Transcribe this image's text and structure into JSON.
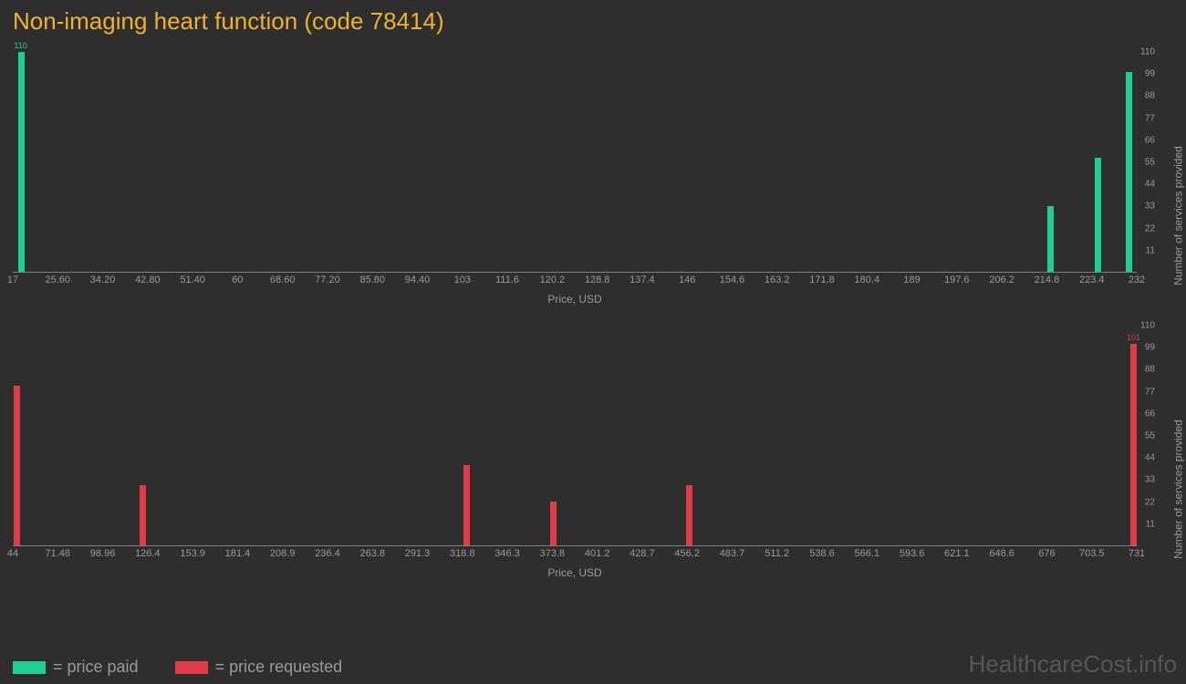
{
  "title": "Non-imaging heart function (code 78414)",
  "background_color": "#2e2e2e",
  "title_color": "#efb32a",
  "tick_color": "#9a9a9a",
  "axis_line_color": "#808080",
  "watermark": "HealthcareCost.info",
  "watermark_color": "#565656",
  "chart_top": {
    "type": "bar",
    "color": "#1ecf92",
    "xlabel": "Price, USD",
    "ylabel": "Number of services provided",
    "xmin": 17,
    "xmax": 232,
    "xticks": [
      "17",
      "25.60",
      "34.20",
      "42.80",
      "51.40",
      "60",
      "68.60",
      "77.20",
      "85.80",
      "94.40",
      "103",
      "111.6",
      "120.2",
      "128.8",
      "137.4",
      "146",
      "154.6",
      "163.2",
      "171.8",
      "180.4",
      "189",
      "197.6",
      "206.2",
      "214.8",
      "223.4",
      "232"
    ],
    "ymin": 0,
    "ymax": 110,
    "yticks": [
      11,
      22,
      33,
      44,
      55,
      66,
      77,
      88,
      99,
      110
    ],
    "bars": [
      {
        "x": 18.5,
        "y": 110,
        "label": "110"
      },
      {
        "x": 215.5,
        "y": 33
      },
      {
        "x": 224.5,
        "y": 57
      },
      {
        "x": 230.5,
        "y": 100
      }
    ]
  },
  "chart_bottom": {
    "type": "bar",
    "color": "#e03b46",
    "xlabel": "Price, USD",
    "ylabel": "Number of services provided",
    "xmin": 44,
    "xmax": 731,
    "xticks": [
      "44",
      "71.48",
      "98.96",
      "126.4",
      "153.9",
      "181.4",
      "208.9",
      "236.4",
      "263.8",
      "291.3",
      "318.8",
      "346.3",
      "373.8",
      "401.2",
      "428.7",
      "456.2",
      "483.7",
      "511.2",
      "538.6",
      "566.1",
      "593.6",
      "621.1",
      "648.6",
      "676",
      "703.5",
      "731"
    ],
    "ymin": 0,
    "ymax": 110,
    "yticks": [
      11,
      22,
      33,
      44,
      55,
      66,
      77,
      88,
      99,
      110
    ],
    "bars": [
      {
        "x": 46,
        "y": 80
      },
      {
        "x": 123,
        "y": 30
      },
      {
        "x": 321,
        "y": 40
      },
      {
        "x": 374,
        "y": 22
      },
      {
        "x": 457,
        "y": 30
      },
      {
        "x": 729,
        "y": 101,
        "label": "101"
      }
    ]
  },
  "legend": {
    "paid": {
      "color": "#1ecf92",
      "label": "= price paid"
    },
    "requested": {
      "color": "#e03b46",
      "label": "= price requested"
    }
  }
}
